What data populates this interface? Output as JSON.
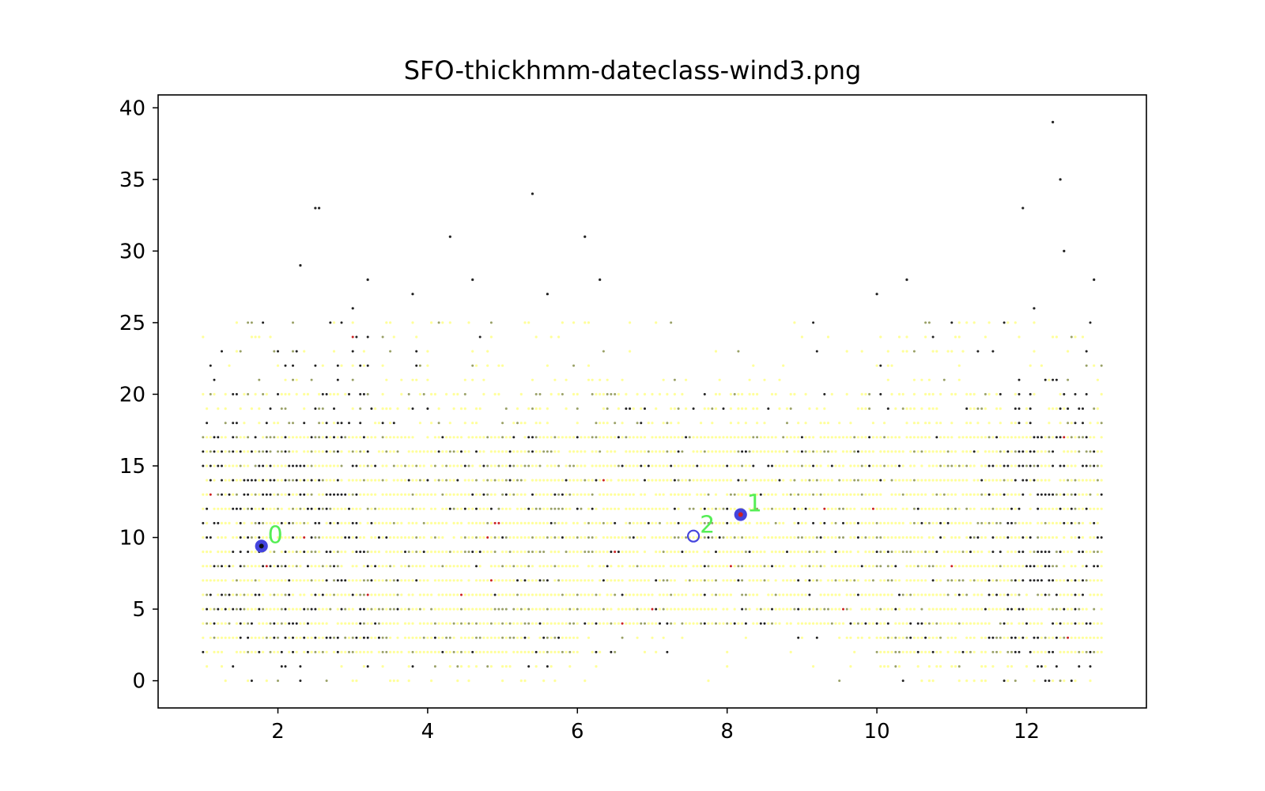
{
  "chart_data": {
    "type": "scatter",
    "title": "SFO-thickhmm-dateclass-wind3.png",
    "xlabel": "",
    "ylabel": "",
    "xlim": [
      0.4,
      13.6
    ],
    "ylim": [
      -1.9,
      40.9
    ],
    "x_ticks": [
      "2",
      "4",
      "6",
      "8",
      "10",
      "12"
    ],
    "y_ticks": [
      "0",
      "5",
      "10",
      "15",
      "20",
      "25",
      "30",
      "35",
      "40"
    ],
    "grid": false,
    "legend": "none",
    "x_domain": [
      1,
      13
    ],
    "y_integer_levels": [
      0,
      25
    ],
    "colors": {
      "light": "#ffff99",
      "mid": "#99a066",
      "dark": "#222222",
      "rare": "#cc2222",
      "center_fill": "#4444dd",
      "center_label": "#55ee55"
    },
    "outliers": [
      {
        "x": 2.5,
        "y": 33
      },
      {
        "x": 2.55,
        "y": 33
      },
      {
        "x": 4.3,
        "y": 31
      },
      {
        "x": 2.3,
        "y": 29
      },
      {
        "x": 3.2,
        "y": 28
      },
      {
        "x": 6.3,
        "y": 28
      },
      {
        "x": 10.4,
        "y": 28
      },
      {
        "x": 12.9,
        "y": 28
      },
      {
        "x": 11.95,
        "y": 33
      },
      {
        "x": 12.35,
        "y": 39
      },
      {
        "x": 12.5,
        "y": 30
      },
      {
        "x": 3.0,
        "y": 26
      },
      {
        "x": 5.4,
        "y": 34
      },
      {
        "x": 6.1,
        "y": 31
      },
      {
        "x": 12.45,
        "y": 35
      },
      {
        "x": 3.8,
        "y": 27
      },
      {
        "x": 5.6,
        "y": 27
      },
      {
        "x": 12.1,
        "y": 26
      },
      {
        "x": 10.0,
        "y": 27
      },
      {
        "x": 4.6,
        "y": 28
      },
      {
        "x": 11.2,
        "y": 0
      },
      {
        "x": 12.5,
        "y": 0
      }
    ],
    "cluster_centers": [
      {
        "label": "0",
        "x": 1.78,
        "y": 9.4,
        "filled": true
      },
      {
        "label": "1",
        "x": 8.18,
        "y": 11.6,
        "filled": true
      },
      {
        "label": "2",
        "x": 7.55,
        "y": 10.1,
        "filled": false
      }
    ]
  }
}
